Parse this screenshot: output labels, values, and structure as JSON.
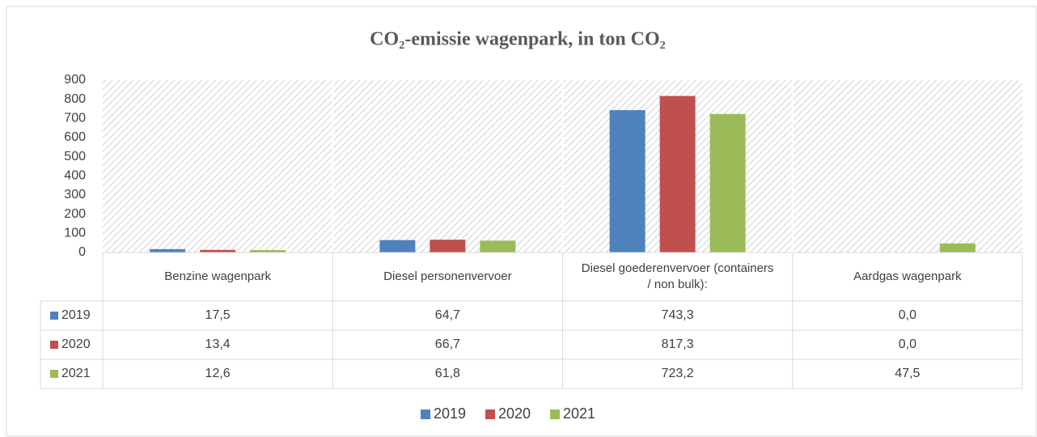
{
  "chart_data": {
    "type": "bar",
    "title": "CO₂-emissie wagenpark, in ton CO₂",
    "categories": [
      "Benzine wagenpark",
      "Diesel personenvervoer",
      "Diesel goederenvervoer (containers / non bulk):",
      "Aardgas wagenpark"
    ],
    "series": [
      {
        "name": "2019",
        "color": "#4f81bd",
        "values": [
          17.5,
          64.7,
          743.3,
          0.0
        ],
        "value_labels": [
          "17,5",
          "64,7",
          "743,3",
          "0,0"
        ]
      },
      {
        "name": "2020",
        "color": "#c0504d",
        "values": [
          13.4,
          66.7,
          817.3,
          0.0
        ],
        "value_labels": [
          "13,4",
          "66,7",
          "817,3",
          "0,0"
        ]
      },
      {
        "name": "2021",
        "color": "#9bbb59",
        "values": [
          12.6,
          61.8,
          723.2,
          47.5
        ],
        "value_labels": [
          "12,6",
          "61,8",
          "723,2",
          "47,5"
        ]
      }
    ],
    "ylim": [
      0,
      900
    ],
    "yticks": [
      0,
      100,
      200,
      300,
      400,
      500,
      600,
      700,
      800,
      900
    ],
    "legend": "bottom"
  }
}
